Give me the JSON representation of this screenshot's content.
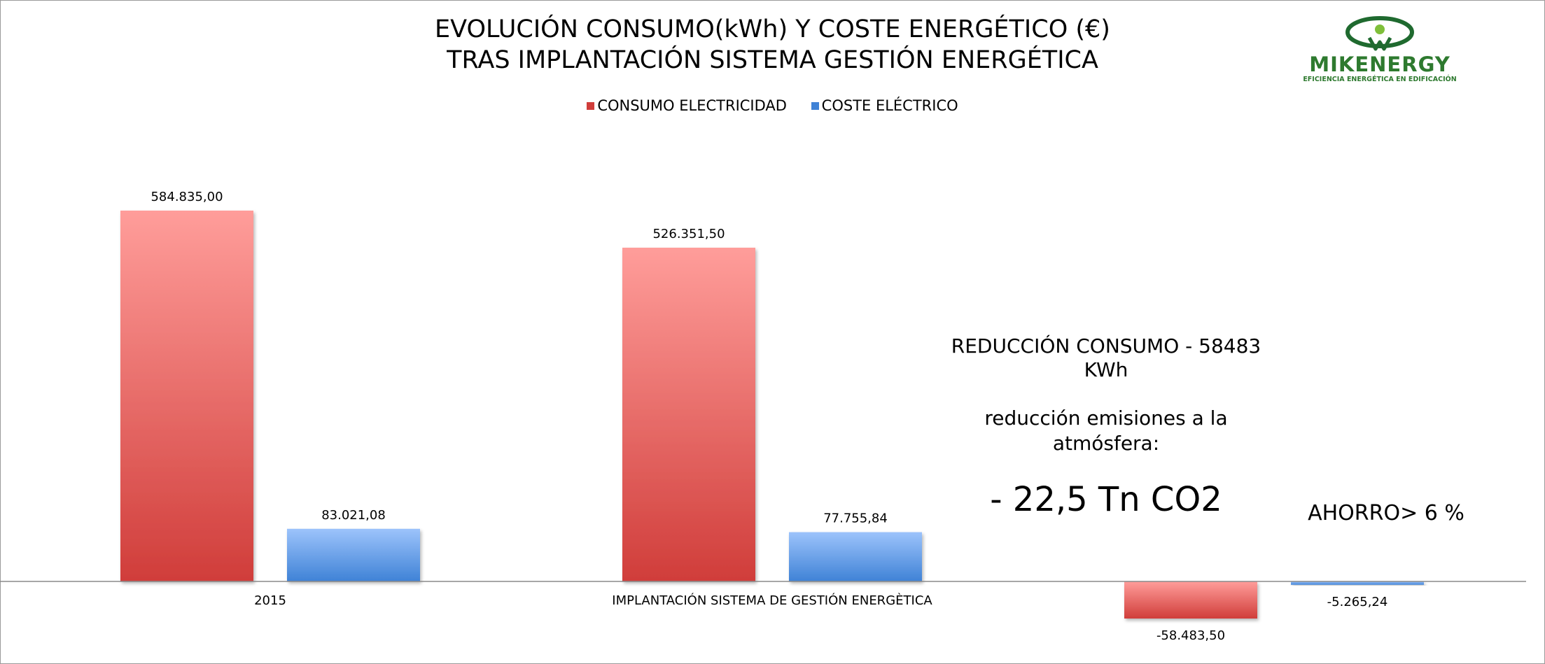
{
  "chart_data": {
    "type": "bar",
    "title_line1": "EVOLUCIÓN CONSUMO(kWh) Y COSTE ENERGÉTICO (€)",
    "title_line2": "TRAS IMPLANTACIÓN SISTEMA GESTIÓN ENERGÉTICA",
    "categories": [
      "2015",
      "IMPLANTACIÓN SISTEMA DE GESTIÓN  ENERGÈTICA",
      ""
    ],
    "series": [
      {
        "name": "CONSUMO ELECTRICIDAD",
        "values": [
          584835.0,
          526351.5,
          -58483.5
        ],
        "labels": [
          "584.835,00",
          "526.351,50",
          "-58.483,50"
        ],
        "color_top": "#ff9d9a",
        "color_bottom": "#d03d3a"
      },
      {
        "name": "COSTE ELÉCTRICO",
        "values": [
          83021.08,
          77755.84,
          -5265.24
        ],
        "labels": [
          "83.021,08",
          "77.755,84",
          "-5.265,24"
        ],
        "color_top": "#9cc3fb",
        "color_bottom": "#3f82d6"
      }
    ],
    "legend_position": "top",
    "grid": false,
    "ylim": [
      -100000,
      600000
    ]
  },
  "annotations": {
    "consumo_line1": "REDUCCIÓN CONSUMO - 58483",
    "consumo_line2": "KWh",
    "emisiones_line1": "reducción emisiones a la",
    "emisiones_line2": "atmósfera:",
    "co2": "- 22,5 Tn CO2",
    "ahorro": "AHORRO> 6 %"
  },
  "logo": {
    "text": "MIKENERGY",
    "tagline": "EFICIENCIA ENERGÉTICA EN EDIFICACIÓN",
    "color": "#1f6a2f"
  }
}
